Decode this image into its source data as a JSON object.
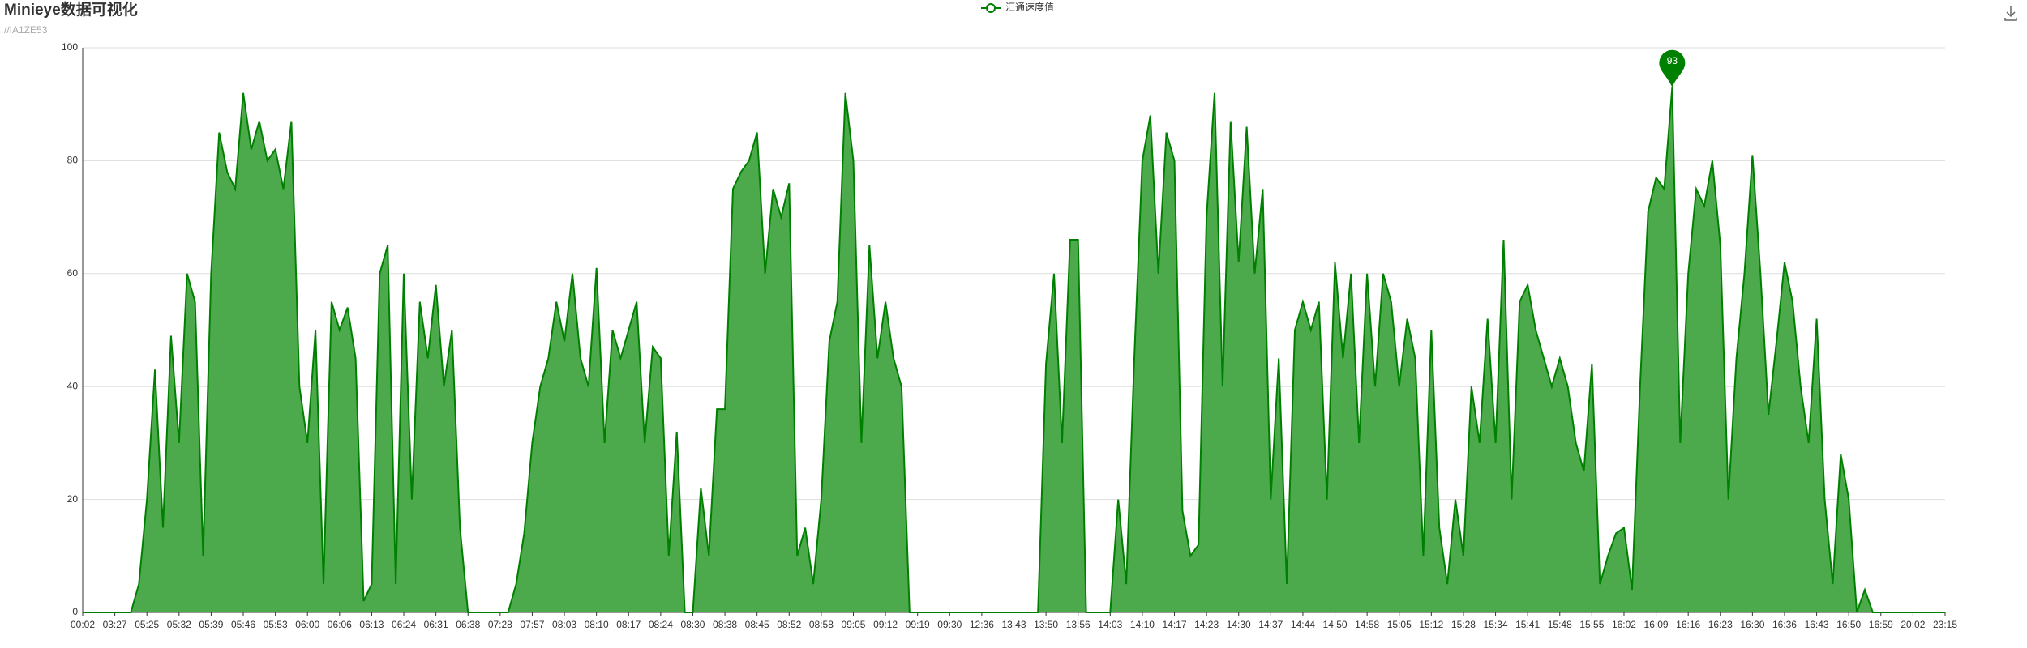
{
  "chart_data": {
    "type": "area",
    "title": "Minieye数据可视化",
    "subtitle": "//IA1ZE53",
    "series": [
      {
        "name": "汇通速度值",
        "color": "#008000",
        "fill": "#4caa4c",
        "values": [
          0,
          0,
          0,
          0,
          0,
          0,
          0,
          5,
          20,
          43,
          15,
          49,
          30,
          60,
          55,
          10,
          60,
          85,
          78,
          75,
          92,
          82,
          87,
          80,
          82,
          75,
          87,
          40,
          30,
          50,
          5,
          55,
          50,
          54,
          45,
          2,
          5,
          60,
          65,
          5,
          60,
          20,
          55,
          45,
          58,
          40,
          50,
          15,
          0,
          0,
          0,
          0,
          0,
          0,
          5,
          14,
          30,
          40,
          45,
          55,
          48,
          60,
          45,
          40,
          61,
          30,
          50,
          45,
          50,
          55,
          30,
          47,
          45,
          10,
          32,
          0,
          0,
          22,
          10,
          36,
          36,
          75,
          78,
          80,
          85,
          60,
          75,
          70,
          76,
          10,
          15,
          5,
          20,
          48,
          55,
          92,
          80,
          30,
          65,
          45,
          55,
          45,
          40,
          0,
          0,
          0,
          0,
          0,
          0,
          0,
          0,
          0,
          0,
          0,
          0,
          0,
          0,
          0,
          0,
          0,
          44,
          60,
          30,
          66,
          66,
          0,
          0,
          0,
          0,
          20,
          5,
          45,
          80,
          88,
          60,
          85,
          80,
          18,
          10,
          12,
          70,
          92,
          40,
          87,
          62,
          86,
          60,
          75,
          20,
          45,
          5,
          50,
          55,
          50,
          55,
          20,
          62,
          45,
          60,
          30,
          60,
          40,
          60,
          55,
          40,
          52,
          45,
          10,
          50,
          15,
          5,
          20,
          10,
          40,
          30,
          52,
          30,
          66,
          20,
          55,
          58,
          50,
          45,
          40,
          45,
          40,
          30,
          25,
          44,
          5,
          10,
          14,
          15,
          4,
          40,
          71,
          77,
          75,
          93,
          30,
          60,
          75,
          72,
          80,
          65,
          20,
          45,
          60,
          81,
          60,
          35,
          48,
          62,
          55,
          40,
          30,
          52,
          20,
          5,
          28,
          20,
          0,
          4,
          0,
          0,
          0,
          0,
          0,
          0,
          0,
          0,
          0,
          0
        ]
      }
    ],
    "categories": [
      "00:02",
      null,
      null,
      null,
      "03:27",
      null,
      null,
      null,
      "05:25",
      null,
      null,
      null,
      "05:32",
      null,
      null,
      null,
      "05:39",
      null,
      null,
      null,
      "05:46",
      null,
      null,
      null,
      "05:53",
      null,
      null,
      null,
      "06:00",
      null,
      null,
      null,
      "06:06",
      null,
      null,
      null,
      "06:13",
      null,
      null,
      null,
      "06:24",
      null,
      null,
      null,
      "06:31",
      null,
      null,
      null,
      "06:38",
      null,
      null,
      null,
      "07:28",
      null,
      null,
      null,
      "07:57",
      null,
      null,
      null,
      "08:03",
      null,
      null,
      null,
      "08:10",
      null,
      null,
      null,
      "08:17",
      null,
      null,
      null,
      "08:24",
      null,
      null,
      null,
      "08:30",
      null,
      null,
      null,
      "08:38",
      null,
      null,
      null,
      "08:45",
      null,
      null,
      null,
      "08:52",
      null,
      null,
      null,
      "08:58",
      null,
      null,
      null,
      "09:05",
      null,
      null,
      null,
      "09:12",
      null,
      null,
      null,
      "09:19",
      null,
      null,
      null,
      "09:30",
      null,
      null,
      null,
      "12:36",
      null,
      null,
      null,
      "13:43",
      null,
      null,
      null,
      "13:50",
      null,
      null,
      null,
      "13:56",
      null,
      null,
      null,
      "14:03",
      null,
      null,
      null,
      "14:10",
      null,
      null,
      null,
      "14:17",
      null,
      null,
      null,
      "14:23",
      null,
      null,
      null,
      "14:30",
      null,
      null,
      null,
      "14:37",
      null,
      null,
      null,
      "14:44",
      null,
      null,
      null,
      "14:50",
      null,
      null,
      null,
      "14:58",
      null,
      null,
      null,
      "15:05",
      null,
      null,
      null,
      "15:12",
      null,
      null,
      null,
      "15:28",
      null,
      null,
      null,
      "15:34",
      null,
      null,
      null,
      "15:41",
      null,
      null,
      null,
      "15:48",
      null,
      null,
      null,
      "15:55",
      null,
      null,
      null,
      "16:02",
      null,
      null,
      null,
      "16:09",
      null,
      null,
      null,
      "16:16",
      null,
      null,
      null,
      "16:23",
      null,
      null,
      null,
      "16:30",
      null,
      null,
      null,
      "16:36",
      null,
      null,
      null,
      "16:43",
      null,
      null,
      null,
      "16:50",
      null,
      null,
      null,
      "16:59",
      null,
      null,
      null,
      "20:02",
      null,
      null,
      null,
      "23:15"
    ],
    "ylim": [
      0,
      100
    ],
    "yticks": [
      0,
      20,
      40,
      60,
      80,
      100
    ],
    "grid": true,
    "mark_point": 93
  }
}
